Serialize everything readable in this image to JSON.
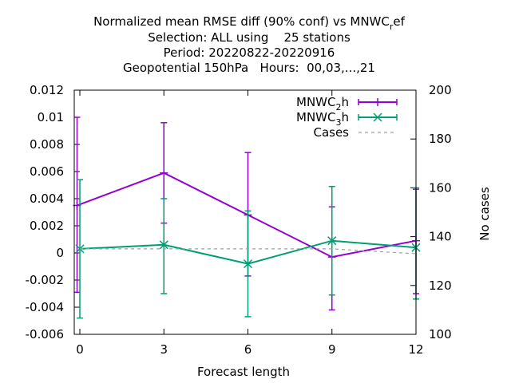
{
  "chart_data": {
    "type": "line",
    "title": {
      "line1": "Normalized mean RMSE diff (90% conf) vs MNWC",
      "line1_sub": "r",
      "line1_tail": "ef",
      "line2": "Selection: ALL using    25 stations",
      "line3": "Period: 20220822-20220916",
      "line4": "Geopotential 150hPa   Hours:  00,03,...,21"
    },
    "xlabel": "Forecast length",
    "ylabel": "",
    "y2label": "No cases",
    "xlim": [
      -0.2,
      12
    ],
    "ylim": [
      -0.006,
      0.012
    ],
    "y2lim": [
      100,
      200
    ],
    "x_ticks": [
      0,
      3,
      6,
      9,
      12
    ],
    "x_tick_labels": [
      "0",
      "3",
      "6",
      "9",
      "12"
    ],
    "y_ticks": [
      -0.006,
      -0.004,
      -0.002,
      0,
      0.002,
      0.004,
      0.006,
      0.008,
      0.01,
      0.012
    ],
    "y_tick_labels": [
      "-0.006",
      "-0.004",
      "-0.002",
      "0",
      "0.002",
      "0.004",
      "0.006",
      "0.008",
      "0.01",
      "0.012"
    ],
    "y2_ticks": [
      100,
      120,
      140,
      160,
      180,
      200
    ],
    "y2_tick_labels": [
      "100",
      "120",
      "140",
      "160",
      "180",
      "200"
    ],
    "grid": false,
    "legend_position": "top-right",
    "series": [
      {
        "name": "MNWC",
        "name_sub": "2",
        "name_tail": "h",
        "color": "#9400d3",
        "marker": "plus",
        "axis": "left",
        "x": [
          -0.1,
          3,
          6,
          9,
          12
        ],
        "y": [
          0.0035,
          0.0059,
          0.0028,
          -0.0003,
          0.0009
        ],
        "err_low": [
          -0.0029,
          0.0022,
          -0.0017,
          -0.0042,
          -0.003
        ],
        "err_high": [
          0.01,
          0.0096,
          0.0074,
          0.0034,
          0.0047
        ]
      },
      {
        "name": "MNWC",
        "name_sub": "3",
        "name_tail": "h",
        "color": "#009e73",
        "marker": "cross",
        "axis": "left",
        "x": [
          0,
          3,
          6,
          9,
          12
        ],
        "y": [
          0.0003,
          0.0006,
          -0.0008,
          0.0009,
          0.0004
        ],
        "err_low": [
          -0.0048,
          -0.003,
          -0.0047,
          -0.0031,
          -0.0034
        ],
        "err_high": [
          0.0054,
          0.004,
          0.0031,
          0.0049,
          0.0048
        ]
      },
      {
        "name": "Cases",
        "color": "#a0a0a0",
        "marker": "none",
        "dashed": true,
        "axis": "right",
        "x": [
          0,
          3,
          6,
          9,
          12
        ],
        "y": [
          135,
          135,
          135,
          135,
          133
        ]
      }
    ]
  }
}
